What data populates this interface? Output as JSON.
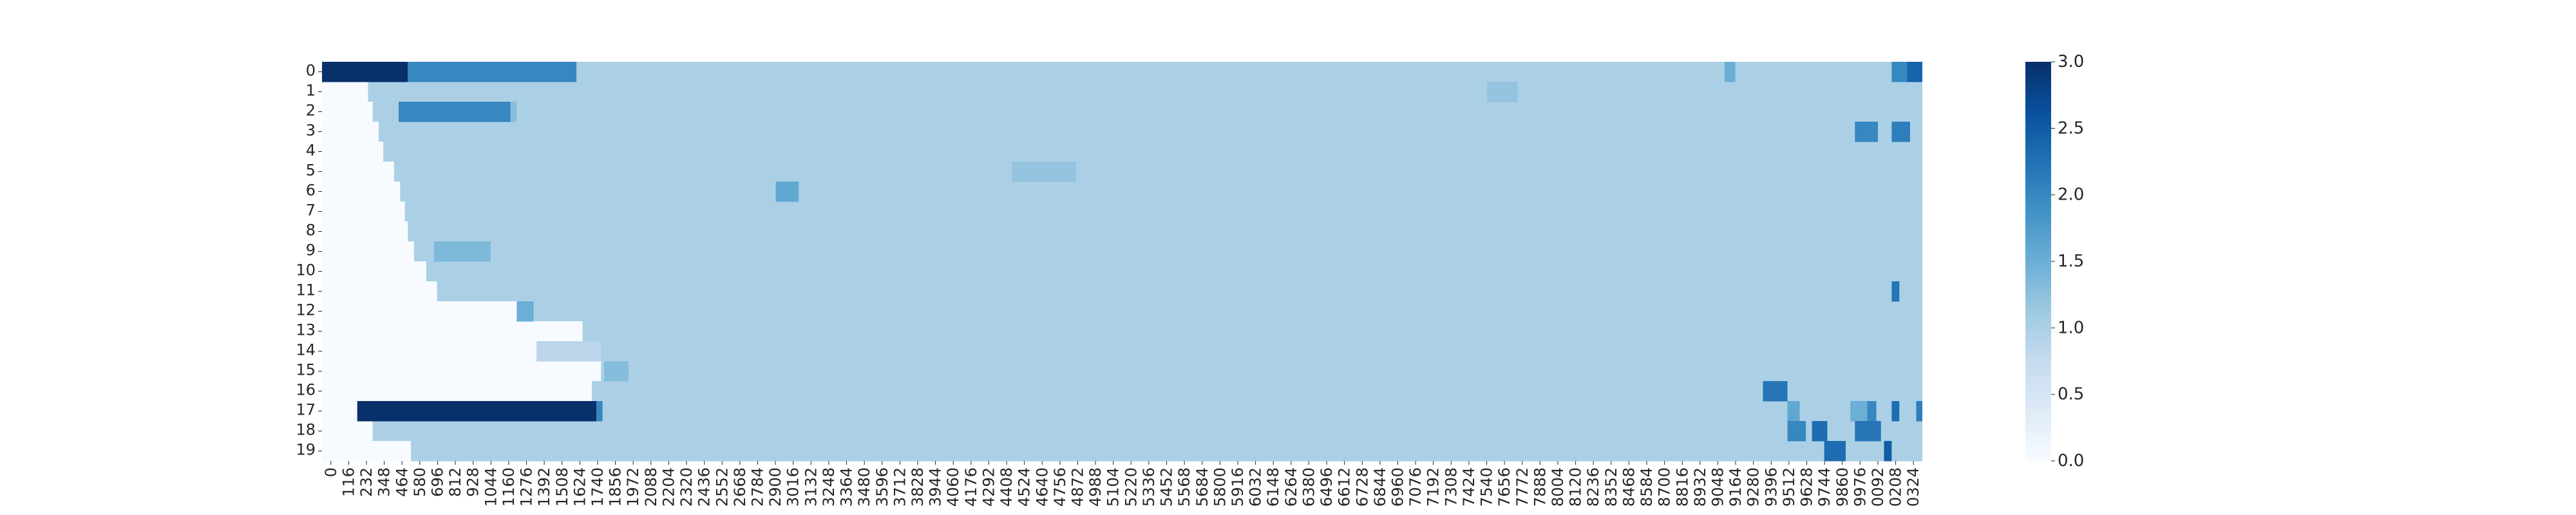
{
  "chart_data": {
    "type": "heatmap",
    "title": "",
    "xlabel": "",
    "ylabel": "",
    "rows": [
      "0",
      "1",
      "2",
      "3",
      "4",
      "5",
      "6",
      "7",
      "8",
      "9",
      "10",
      "11",
      "12",
      "13",
      "14",
      "15",
      "16",
      "17",
      "18",
      "19"
    ],
    "x_tick_labels": [
      "0",
      "116",
      "232",
      "348",
      "464",
      "580",
      "696",
      "812",
      "928",
      "1044",
      "1160",
      "1276",
      "1392",
      "1508",
      "1624",
      "1740",
      "1856",
      "1972",
      "2088",
      "2204",
      "2320",
      "2436",
      "2552",
      "2668",
      "2784",
      "2900",
      "3016",
      "3132",
      "3248",
      "3364",
      "3480",
      "3596",
      "3712",
      "3828",
      "3944",
      "4060",
      "4176",
      "4292",
      "4408",
      "4524",
      "4640",
      "4756",
      "4872",
      "4988",
      "5104",
      "5220",
      "5336",
      "5452",
      "5568",
      "5684",
      "5800",
      "5916",
      "6032",
      "6148",
      "6264",
      "6380",
      "6496",
      "6612",
      "6728",
      "6844",
      "6960",
      "7076",
      "7192",
      "7308",
      "7424",
      "7540",
      "7656",
      "7772",
      "7888",
      "8004",
      "8120",
      "8236",
      "8352",
      "8468",
      "8584",
      "8700",
      "8816",
      "8932",
      "9048",
      "9164",
      "9280",
      "9396",
      "9512",
      "9628",
      "9744",
      "9860",
      "9976",
      "0092",
      "0208",
      "0324"
    ],
    "x_range": [
      0,
      10440
    ],
    "baseline_value": 1.0,
    "colorbar": {
      "min": 0.0,
      "max": 3.0,
      "ticks": [
        "0.0",
        "0.5",
        "1.0",
        "1.5",
        "2.0",
        "2.5",
        "3.0"
      ]
    },
    "colormap": [
      "#f7fbff",
      "#deebf7",
      "#c6dbef",
      "#9ecae1",
      "#6baed6",
      "#4292c6",
      "#2171b5",
      "#08519c",
      "#08306b"
    ],
    "row_start_x": [
      0,
      300,
      330,
      370,
      400,
      470,
      510,
      540,
      560,
      600,
      680,
      750,
      1320,
      1700,
      1400,
      1820,
      1760,
      230,
      330,
      580
    ],
    "segments": [
      {
        "row": 0,
        "x0": 0,
        "x1": 560,
        "value": 3.0
      },
      {
        "row": 0,
        "x0": 560,
        "x1": 1660,
        "value": 2.0
      },
      {
        "row": 0,
        "x0": 9150,
        "x1": 9220,
        "value": 1.5
      },
      {
        "row": 0,
        "x0": 10240,
        "x1": 10340,
        "value": 2.0
      },
      {
        "row": 0,
        "x0": 10340,
        "x1": 10440,
        "value": 2.4
      },
      {
        "row": 1,
        "x0": 7600,
        "x1": 7800,
        "value": 1.2
      },
      {
        "row": 2,
        "x0": 500,
        "x1": 1230,
        "value": 2.0
      },
      {
        "row": 2,
        "x0": 1230,
        "x1": 1270,
        "value": 1.3
      },
      {
        "row": 3,
        "x0": 10000,
        "x1": 10150,
        "value": 2.0
      },
      {
        "row": 3,
        "x0": 10240,
        "x1": 10360,
        "value": 2.1
      },
      {
        "row": 5,
        "x0": 4500,
        "x1": 4920,
        "value": 1.2
      },
      {
        "row": 6,
        "x0": 2960,
        "x1": 3110,
        "value": 1.6
      },
      {
        "row": 9,
        "x0": 730,
        "x1": 1100,
        "value": 1.35
      },
      {
        "row": 11,
        "x0": 10240,
        "x1": 10290,
        "value": 2.2
      },
      {
        "row": 12,
        "x0": 1270,
        "x1": 1380,
        "value": 1.5
      },
      {
        "row": 14,
        "x0": 1400,
        "x1": 1820,
        "value": 0.85
      },
      {
        "row": 15,
        "x0": 1840,
        "x1": 2000,
        "value": 1.3
      },
      {
        "row": 16,
        "x0": 9400,
        "x1": 9560,
        "value": 2.2
      },
      {
        "row": 17,
        "x0": 230,
        "x1": 1790,
        "value": 3.0
      },
      {
        "row": 17,
        "x0": 1790,
        "x1": 1830,
        "value": 2.0
      },
      {
        "row": 17,
        "x0": 9560,
        "x1": 9640,
        "value": 1.6
      },
      {
        "row": 17,
        "x0": 9970,
        "x1": 10080,
        "value": 1.5
      },
      {
        "row": 17,
        "x0": 10080,
        "x1": 10140,
        "value": 2.0
      },
      {
        "row": 17,
        "x0": 10240,
        "x1": 10290,
        "value": 2.3
      },
      {
        "row": 17,
        "x0": 10400,
        "x1": 10440,
        "value": 2.1
      },
      {
        "row": 18,
        "x0": 9560,
        "x1": 9680,
        "value": 2.0
      },
      {
        "row": 18,
        "x0": 9720,
        "x1": 9820,
        "value": 2.3
      },
      {
        "row": 18,
        "x0": 10000,
        "x1": 10170,
        "value": 2.2
      },
      {
        "row": 19,
        "x0": 9800,
        "x1": 9940,
        "value": 2.3
      },
      {
        "row": 19,
        "x0": 10190,
        "x1": 10240,
        "value": 2.5
      }
    ]
  }
}
